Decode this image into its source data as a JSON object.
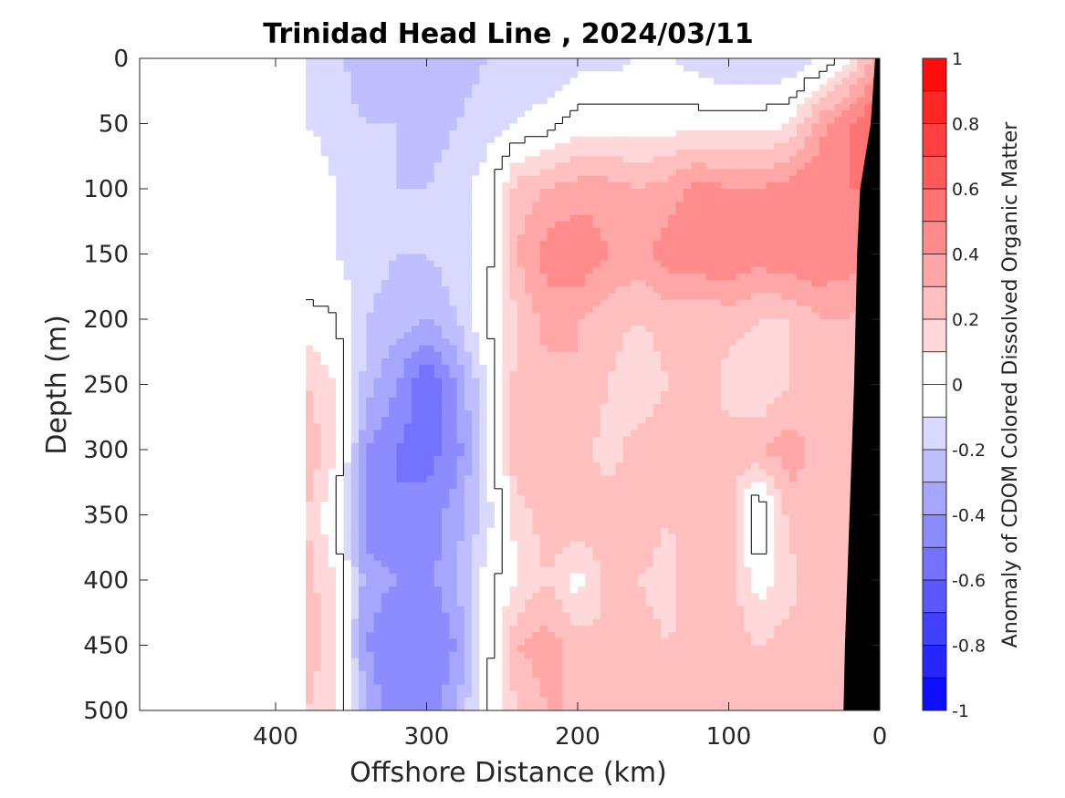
{
  "chart_data": {
    "type": "heatmap",
    "title": "Trinidad Head Line , 2024/03/11",
    "xlabel": "Offshore Distance (km)",
    "ylabel": "Depth (m)",
    "colorbar_label": "Anomaly of CDOM Colored Dissolved Organic Matter",
    "xlim": [
      490,
      0
    ],
    "ylim": [
      0,
      500
    ],
    "x_reversed": true,
    "y_reversed": true,
    "x_ticks": [
      400,
      300,
      200,
      100,
      0
    ],
    "y_ticks": [
      0,
      50,
      100,
      150,
      200,
      250,
      300,
      350,
      400,
      450,
      500
    ],
    "colorbar_range": [
      -1,
      1
    ],
    "colorbar_ticks": [
      -1,
      -0.8,
      -0.6,
      -0.4,
      -0.2,
      0,
      0.2,
      0.4,
      0.6,
      0.8,
      1
    ],
    "colorbar_ticks_text": [
      "-1",
      "-0.8",
      "-0.6",
      "-0.4",
      "-0.2",
      "0",
      "0.2",
      "0.4",
      "0.6",
      "0.8",
      "1"
    ],
    "colorbar_levels": [
      -1,
      -0.9,
      -0.8,
      -0.7,
      -0.6,
      -0.5,
      -0.4,
      -0.3,
      -0.2,
      -0.1,
      0,
      0.1,
      0.2,
      0.3,
      0.4,
      0.5,
      0.6,
      0.7,
      0.8,
      0.9,
      1
    ],
    "colormap": "blue-white-red",
    "data_extent_km": [
      380,
      0
    ],
    "bathymetry_color": "#000000",
    "zero_contour_color": "#000000",
    "x_distance_km": [
      380,
      360,
      340,
      320,
      300,
      280,
      260,
      240,
      220,
      200,
      180,
      160,
      140,
      120,
      100,
      80,
      60,
      40,
      20,
      5
    ],
    "depth_m": [
      0,
      50,
      100,
      150,
      200,
      250,
      300,
      350,
      400,
      450,
      500
    ],
    "anomaly": [
      [
        -0.1,
        -0.15,
        -0.3,
        -0.25,
        -0.3,
        -0.25,
        -0.2,
        -0.15,
        -0.2,
        -0.15,
        -0.15,
        -0.1,
        -0.1,
        -0.15,
        -0.2,
        -0.2,
        -0.2,
        -0.1,
        0.1,
        0.3
      ],
      [
        -0.1,
        -0.15,
        -0.2,
        -0.2,
        -0.25,
        -0.2,
        -0.15,
        -0.1,
        -0.05,
        0.05,
        0.05,
        0.05,
        0.05,
        0.05,
        0.05,
        0.05,
        0.1,
        0.35,
        0.5,
        0.6
      ],
      [
        0.0,
        -0.1,
        -0.15,
        -0.2,
        -0.2,
        -0.15,
        -0.05,
        0.25,
        0.3,
        0.35,
        0.35,
        0.3,
        0.35,
        0.45,
        0.4,
        0.4,
        0.45,
        0.5,
        0.5,
        0.5
      ],
      [
        -0.1,
        -0.1,
        -0.15,
        -0.2,
        -0.2,
        -0.15,
        -0.05,
        0.3,
        0.45,
        0.5,
        0.4,
        0.35,
        0.45,
        0.5,
        0.5,
        0.45,
        0.5,
        0.5,
        0.45,
        0.4
      ],
      [
        0.05,
        0.0,
        -0.2,
        -0.25,
        -0.3,
        -0.2,
        0.0,
        0.2,
        0.35,
        0.3,
        0.25,
        0.2,
        0.25,
        0.2,
        0.25,
        0.2,
        0.2,
        0.3,
        0.3,
        0.2
      ],
      [
        0.2,
        0.1,
        -0.25,
        -0.4,
        -0.6,
        -0.4,
        -0.1,
        0.25,
        0.25,
        0.3,
        0.2,
        0.1,
        0.2,
        0.3,
        0.15,
        0.1,
        0.2,
        0.3,
        0.25,
        0.2
      ],
      [
        0.3,
        0.1,
        -0.4,
        -0.5,
        -0.55,
        -0.45,
        -0.1,
        0.3,
        0.3,
        0.25,
        0.15,
        0.25,
        0.3,
        0.25,
        0.25,
        0.3,
        0.35,
        0.25,
        0.2,
        0.2
      ],
      [
        0.2,
        0.0,
        -0.45,
        -0.5,
        -0.45,
        -0.35,
        -0.15,
        0.15,
        0.25,
        0.3,
        0.25,
        0.3,
        0.2,
        0.3,
        0.25,
        -0.15,
        0.25,
        0.3,
        0.2,
        0.2
      ],
      [
        0.25,
        0.1,
        -0.35,
        -0.4,
        -0.45,
        -0.3,
        -0.05,
        0.1,
        0.2,
        0.05,
        0.25,
        0.2,
        0.15,
        0.3,
        0.25,
        0.05,
        0.15,
        0.3,
        0.2,
        0.2
      ],
      [
        0.3,
        0.1,
        -0.4,
        -0.5,
        -0.5,
        -0.4,
        -0.05,
        0.3,
        0.35,
        0.25,
        0.2,
        0.25,
        0.2,
        0.25,
        0.25,
        0.2,
        0.25,
        0.3,
        0.25,
        0.2
      ],
      [
        0.2,
        0.1,
        -0.3,
        -0.5,
        -0.5,
        -0.3,
        0.0,
        0.2,
        0.3,
        0.3,
        0.25,
        0.2,
        0.25,
        0.3,
        0.25,
        0.2,
        0.3,
        0.3,
        0.25,
        0.2
      ]
    ]
  }
}
